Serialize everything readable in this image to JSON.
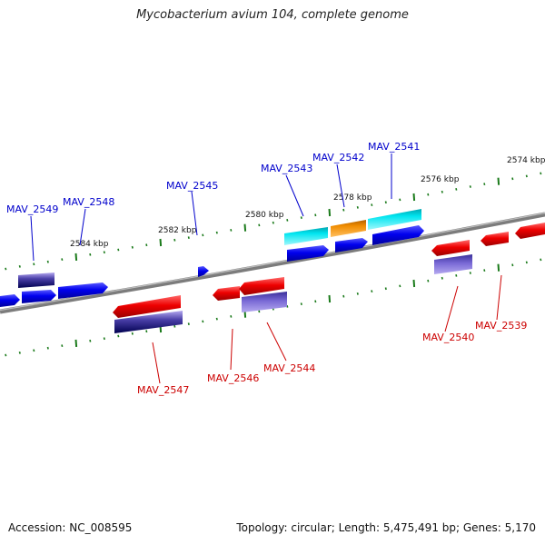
{
  "title": "Mycobacterium avium 104, complete genome",
  "accession": "Accession: NC_008595",
  "summary": "Topology: circular; Length: 5,475,491 bp; Genes: 5,170",
  "colors": {
    "forward_label": "#0000cc",
    "reverse_label": "#cc0000",
    "backbone": "#808080",
    "tick": "#1a7a1a",
    "forward_gene": "#0000ee",
    "reverse_gene": "#ee0000",
    "cyan_feature": "#00e5f0",
    "orange_feature": "#f08c00",
    "lavender_feature": "#7a6ad6"
  },
  "scale": {
    "ticks": [
      {
        "label": "2584 kbp"
      },
      {
        "label": "2582 kbp"
      },
      {
        "label": "2580 kbp"
      },
      {
        "label": "2578 kbp"
      },
      {
        "label": "2576 kbp"
      },
      {
        "label": "2574 kbp"
      }
    ]
  },
  "genes": [
    {
      "name": "MAV_2549",
      "strand": "forward"
    },
    {
      "name": "MAV_2548",
      "strand": "forward"
    },
    {
      "name": "MAV_2547",
      "strand": "reverse"
    },
    {
      "name": "MAV_2546",
      "strand": "reverse"
    },
    {
      "name": "MAV_2545",
      "strand": "forward"
    },
    {
      "name": "MAV_2544",
      "strand": "reverse"
    },
    {
      "name": "MAV_2543",
      "strand": "forward"
    },
    {
      "name": "MAV_2542",
      "strand": "forward"
    },
    {
      "name": "MAV_2541",
      "strand": "forward"
    },
    {
      "name": "MAV_2540",
      "strand": "reverse"
    },
    {
      "name": "MAV_2539",
      "strand": "reverse"
    }
  ]
}
